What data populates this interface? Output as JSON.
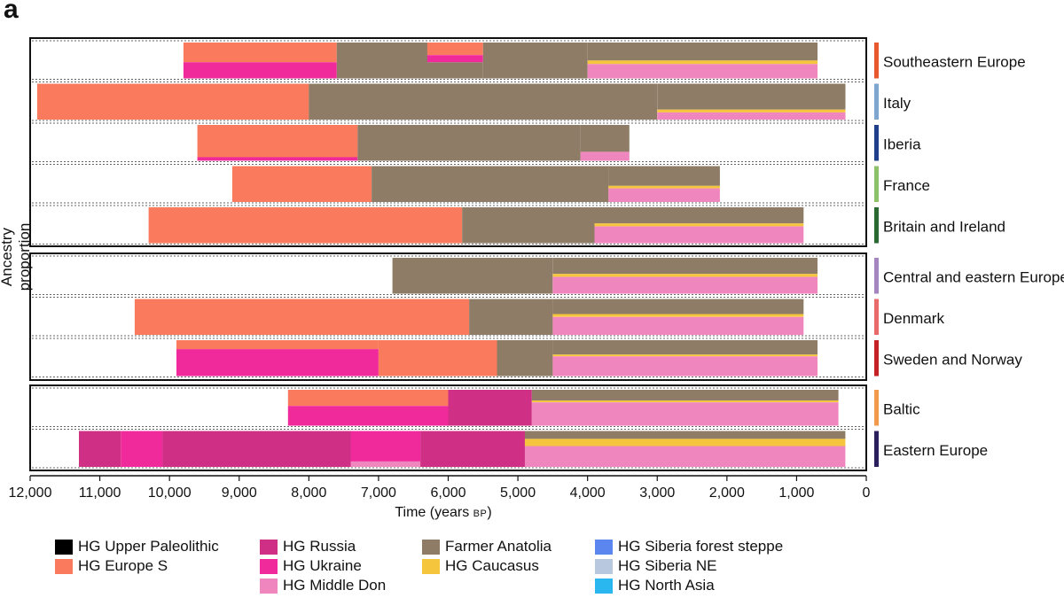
{
  "panel_letter": "a",
  "colors": {
    "HG Upper Paleolithic": "#000000",
    "HG Europe S": "#fa7a5e",
    "HG Russia": "#cf2f85",
    "HG Ukraine": "#f12a9b",
    "HG Middle Don": "#ef86bd",
    "Farmer Anatolia": "#8f7c66",
    "HG Caucasus": "#f6c53e",
    "HG Siberia forest steppe": "#5b86f0",
    "HG Siberia NE": "#b8c8df",
    "HG North Asia": "#2ab7ef"
  },
  "chart_data": {
    "type": "area",
    "ylabel": "Ancestry proportion",
    "xlabel": "Time (years",
    "xlabel_unit": "BP",
    "xlim": [
      12000,
      0
    ],
    "xticks": [
      12000,
      11000,
      10000,
      9000,
      8000,
      7000,
      6000,
      5000,
      4000,
      3000,
      2000,
      1000,
      0
    ],
    "xtick_labels": [
      "12,000",
      "11,000",
      "10,000",
      "9,000",
      "8,000",
      "7,000",
      "6,000",
      "5,000",
      "4,000",
      "3,000",
      "2,000",
      "1,000",
      "0"
    ],
    "legend": [
      "HG Upper Paleolithic",
      "HG Europe S",
      "HG Russia",
      "HG Ukraine",
      "HG Middle Don",
      "Farmer Anatolia",
      "HG Caucasus",
      "HG Siberia forest steppe",
      "HG Siberia NE",
      "HG North Asia"
    ],
    "groups": [
      {
        "regions": [
          {
            "name": "Southeastern Europe",
            "color": "#e8572e",
            "range": [
              9800,
              700
            ],
            "segments": [
              {
                "x": [
                  9800,
                  7600
                ],
                "comp": [
                  [
                    "HG Europe S",
                    0.55
                  ],
                  [
                    "HG Ukraine",
                    0.45
                  ]
                ]
              },
              {
                "x": [
                  7600,
                  6300
                ],
                "comp": [
                  [
                    "Farmer Anatolia",
                    1.0
                  ]
                ]
              },
              {
                "x": [
                  6300,
                  5500
                ],
                "comp": [
                  [
                    "HG Europe S",
                    0.35
                  ],
                  [
                    "HG Ukraine",
                    0.2
                  ],
                  [
                    "Farmer Anatolia",
                    0.45
                  ]
                ]
              },
              {
                "x": [
                  5500,
                  4000
                ],
                "comp": [
                  [
                    "Farmer Anatolia",
                    1.0
                  ]
                ]
              },
              {
                "x": [
                  4000,
                  700
                ],
                "comp": [
                  [
                    "Farmer Anatolia",
                    0.5
                  ],
                  [
                    "HG Caucasus",
                    0.1
                  ],
                  [
                    "HG Middle Don",
                    0.4
                  ]
                ]
              }
            ]
          },
          {
            "name": "Italy",
            "color": "#7fa6cf",
            "range": [
              11900,
              300
            ],
            "segments": [
              {
                "x": [
                  11900,
                  8000
                ],
                "comp": [
                  [
                    "HG Europe S",
                    1.0
                  ]
                ]
              },
              {
                "x": [
                  8000,
                  3000
                ],
                "comp": [
                  [
                    "Farmer Anatolia",
                    1.0
                  ]
                ]
              },
              {
                "x": [
                  3000,
                  300
                ],
                "comp": [
                  [
                    "Farmer Anatolia",
                    0.72
                  ],
                  [
                    "HG Caucasus",
                    0.08
                  ],
                  [
                    "HG Middle Don",
                    0.2
                  ]
                ]
              }
            ]
          },
          {
            "name": "Iberia",
            "color": "#1f3f8a",
            "range": [
              9600,
              3400
            ],
            "segments": [
              {
                "x": [
                  9600,
                  7300
                ],
                "comp": [
                  [
                    "HG Europe S",
                    0.9
                  ],
                  [
                    "HG Ukraine",
                    0.1
                  ]
                ]
              },
              {
                "x": [
                  7300,
                  4100
                ],
                "comp": [
                  [
                    "Farmer Anatolia",
                    1.0
                  ]
                ]
              },
              {
                "x": [
                  4100,
                  3400
                ],
                "comp": [
                  [
                    "Farmer Anatolia",
                    0.75
                  ],
                  [
                    "HG Middle Don",
                    0.25
                  ]
                ]
              }
            ]
          },
          {
            "name": "France",
            "color": "#8cc26a",
            "range": [
              9100,
              2100
            ],
            "segments": [
              {
                "x": [
                  9100,
                  7100
                ],
                "comp": [
                  [
                    "HG Europe S",
                    1.0
                  ]
                ]
              },
              {
                "x": [
                  7100,
                  3700
                ],
                "comp": [
                  [
                    "Farmer Anatolia",
                    1.0
                  ]
                ]
              },
              {
                "x": [
                  3700,
                  2100
                ],
                "comp": [
                  [
                    "Farmer Anatolia",
                    0.55
                  ],
                  [
                    "HG Caucasus",
                    0.07
                  ],
                  [
                    "HG Middle Don",
                    0.38
                  ]
                ]
              }
            ]
          },
          {
            "name": "Britain and Ireland",
            "color": "#2a6a32",
            "range": [
              10300,
              900
            ],
            "segments": [
              {
                "x": [
                  10300,
                  5800
                ],
                "comp": [
                  [
                    "HG Europe S",
                    1.0
                  ]
                ]
              },
              {
                "x": [
                  5800,
                  3900
                ],
                "comp": [
                  [
                    "Farmer Anatolia",
                    1.0
                  ]
                ]
              },
              {
                "x": [
                  3900,
                  900
                ],
                "comp": [
                  [
                    "Farmer Anatolia",
                    0.45
                  ],
                  [
                    "HG Caucasus",
                    0.08
                  ],
                  [
                    "HG Middle Don",
                    0.47
                  ]
                ]
              }
            ]
          }
        ]
      },
      {
        "regions": [
          {
            "name": "Central and eastern Europe",
            "color": "#a585bf",
            "range": [
              6800,
              700
            ],
            "segments": [
              {
                "x": [
                  6800,
                  4500
                ],
                "comp": [
                  [
                    "Farmer Anatolia",
                    1.0
                  ]
                ]
              },
              {
                "x": [
                  4500,
                  700
                ],
                "comp": [
                  [
                    "Farmer Anatolia",
                    0.45
                  ],
                  [
                    "HG Caucasus",
                    0.08
                  ],
                  [
                    "HG Middle Don",
                    0.47
                  ]
                ]
              }
            ]
          },
          {
            "name": "Denmark",
            "color": "#e86a6a",
            "range": [
              10500,
              900
            ],
            "segments": [
              {
                "x": [
                  10500,
                  5700
                ],
                "comp": [
                  [
                    "HG Europe S",
                    1.0
                  ]
                ]
              },
              {
                "x": [
                  5700,
                  4500
                ],
                "comp": [
                  [
                    "Farmer Anatolia",
                    1.0
                  ]
                ]
              },
              {
                "x": [
                  4500,
                  900
                ],
                "comp": [
                  [
                    "Farmer Anatolia",
                    0.42
                  ],
                  [
                    "HG Caucasus",
                    0.08
                  ],
                  [
                    "HG Middle Don",
                    0.5
                  ]
                ]
              }
            ]
          },
          {
            "name": "Sweden and Norway",
            "color": "#c42026",
            "range": [
              9900,
              700
            ],
            "segments": [
              {
                "x": [
                  9900,
                  7000
                ],
                "comp": [
                  [
                    "HG Europe S",
                    0.25
                  ],
                  [
                    "HG Ukraine",
                    0.75
                  ]
                ]
              },
              {
                "x": [
                  7000,
                  5300
                ],
                "comp": [
                  [
                    "HG Europe S",
                    1.0
                  ]
                ]
              },
              {
                "x": [
                  5300,
                  4500
                ],
                "comp": [
                  [
                    "Farmer Anatolia",
                    1.0
                  ]
                ]
              },
              {
                "x": [
                  4500,
                  700
                ],
                "comp": [
                  [
                    "Farmer Anatolia",
                    0.4
                  ],
                  [
                    "HG Caucasus",
                    0.05
                  ],
                  [
                    "HG Middle Don",
                    0.55
                  ]
                ]
              }
            ]
          }
        ]
      },
      {
        "regions": [
          {
            "name": "Baltic",
            "color": "#f29a4c",
            "range": [
              8300,
              400
            ],
            "segments": [
              {
                "x": [
                  8300,
                  6000
                ],
                "comp": [
                  [
                    "HG Europe S",
                    0.45
                  ],
                  [
                    "HG Ukraine",
                    0.55
                  ]
                ]
              },
              {
                "x": [
                  6000,
                  4800
                ],
                "comp": [
                  [
                    "HG Russia",
                    1.0
                  ]
                ]
              },
              {
                "x": [
                  4800,
                  400
                ],
                "comp": [
                  [
                    "Farmer Anatolia",
                    0.3
                  ],
                  [
                    "HG Caucasus",
                    0.05
                  ],
                  [
                    "HG Middle Don",
                    0.65
                  ]
                ]
              }
            ]
          },
          {
            "name": "Eastern Europe",
            "color": "#2a1e5c",
            "range": [
              11300,
              300
            ],
            "segments": [
              {
                "x": [
                  11300,
                  10700
                ],
                "comp": [
                  [
                    "HG Russia",
                    1.0
                  ]
                ]
              },
              {
                "x": [
                  10700,
                  10100
                ],
                "comp": [
                  [
                    "HG Ukraine",
                    1.0
                  ]
                ]
              },
              {
                "x": [
                  10100,
                  7400
                ],
                "comp": [
                  [
                    "HG Russia",
                    1.0
                  ]
                ]
              },
              {
                "x": [
                  7400,
                  6400
                ],
                "comp": [
                  [
                    "HG Ukraine",
                    0.85
                  ],
                  [
                    "HG Middle Don",
                    0.15
                  ]
                ]
              },
              {
                "x": [
                  6400,
                  4900
                ],
                "comp": [
                  [
                    "HG Russia",
                    1.0
                  ]
                ]
              },
              {
                "x": [
                  4900,
                  300
                ],
                "comp": [
                  [
                    "Farmer Anatolia",
                    0.22
                  ],
                  [
                    "HG Caucasus",
                    0.2
                  ],
                  [
                    "HG Middle Don",
                    0.58
                  ]
                ]
              }
            ]
          }
        ]
      }
    ]
  }
}
